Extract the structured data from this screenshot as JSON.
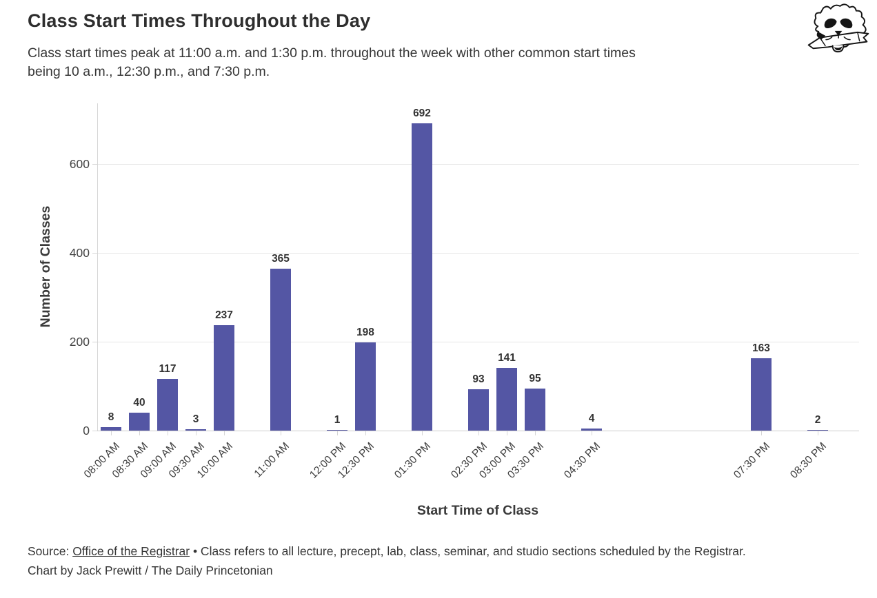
{
  "header": {
    "title": "Class Start Times Throughout the Day",
    "subtitle_lines": [
      "Class start times peak at 11:00 a.m. and 1:30 p.m. throughout the week with other common start times",
      "being 10 a.m., 12:30 p.m., and 7:30 p.m."
    ],
    "logo": "daily-princetonian-tiger"
  },
  "chart_data": {
    "type": "bar",
    "title": "Class Start Times Throughout the Day",
    "xlabel": "Start Time of Class",
    "ylabel": "Number of Classes",
    "categories": [
      "08:00 AM",
      "08:30 AM",
      "09:00 AM",
      "09:30 AM",
      "10:00 AM",
      "11:00 AM",
      "12:00 PM",
      "12:30 PM",
      "01:30 PM",
      "02:30 PM",
      "03:00 PM",
      "03:30 PM",
      "04:30 PM",
      "07:30 PM",
      "08:30 PM"
    ],
    "values": [
      8,
      40,
      117,
      3,
      237,
      365,
      1,
      198,
      692,
      93,
      141,
      95,
      4,
      163,
      2
    ],
    "time_slots_half_hours_from_8am": [
      0,
      1,
      2,
      3,
      4,
      6,
      8,
      9,
      11,
      13,
      14,
      15,
      17,
      23,
      25
    ],
    "yticks": [
      0,
      200,
      400,
      600
    ],
    "ylim": [
      0,
      735
    ],
    "grid": true,
    "legend": "none",
    "bar_color": "#5456a4",
    "grid_color": "#e6e6e6",
    "axis_color": "#cccccc",
    "value_label_color": "#333333"
  },
  "footer": {
    "source_prefix": "Source: ",
    "source_link": "Office of the Registrar",
    "source_note": " • Class refers to all lecture, precept, lab, class, seminar, and studio sections scheduled by the Registrar.",
    "credit": "Chart by Jack Prewitt / The Daily Princetonian"
  }
}
